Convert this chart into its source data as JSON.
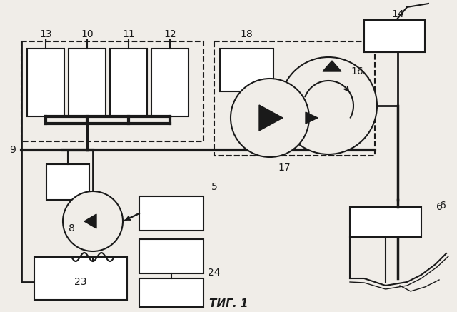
{
  "bg_color": "#f0ede8",
  "line_color": "#1a1a1a",
  "title": "ΤИГ. 1"
}
